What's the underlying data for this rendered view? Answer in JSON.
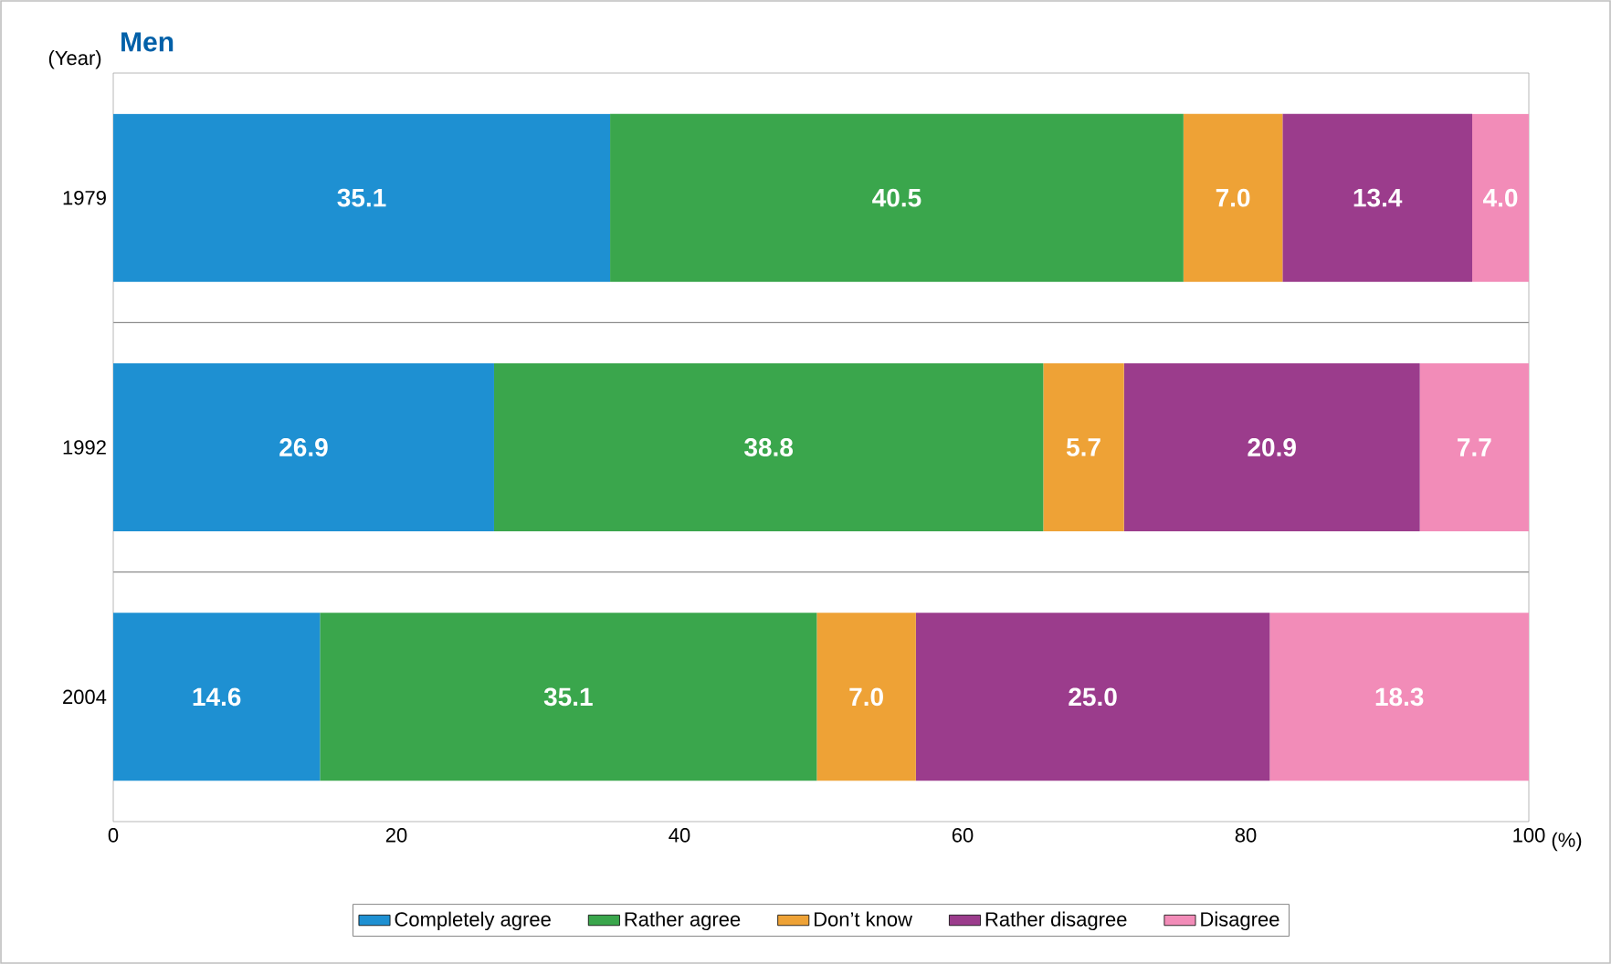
{
  "chart_data": {
    "type": "bar",
    "title": "Men",
    "ylabel": "(Year)",
    "xlabel": "(%)",
    "orientation": "horizontal",
    "stacked": true,
    "categories": [
      "1979",
      "1992",
      "2004"
    ],
    "series": [
      {
        "name": "Completely agree",
        "color": "#1e90d2",
        "values": [
          35.1,
          26.9,
          14.6
        ],
        "value_labels": [
          "35.1",
          "26.9",
          "14.6"
        ]
      },
      {
        "name": "Rather agree",
        "color": "#3aa64c",
        "values": [
          40.5,
          38.8,
          35.1
        ],
        "value_labels": [
          "40.5",
          "38.8",
          "35.1"
        ]
      },
      {
        "name": "Don’t know",
        "color": "#eea236",
        "values": [
          7.0,
          5.7,
          7.0
        ],
        "value_labels": [
          "7.0",
          "5.7",
          "7.0"
        ]
      },
      {
        "name": "Rather disagree",
        "color": "#9b3c8c",
        "values": [
          13.4,
          20.9,
          25.0
        ],
        "value_labels": [
          "13.4",
          "20.9",
          "25.0"
        ]
      },
      {
        "name": "Disagree",
        "color": "#f28cb8",
        "values": [
          4.0,
          7.7,
          18.3
        ],
        "value_labels": [
          "4.0",
          "7.7",
          "18.3"
        ]
      }
    ],
    "xlim": [
      0,
      100
    ],
    "xticks": [
      0,
      20,
      40,
      60,
      80,
      100
    ],
    "legend": "bottom"
  }
}
